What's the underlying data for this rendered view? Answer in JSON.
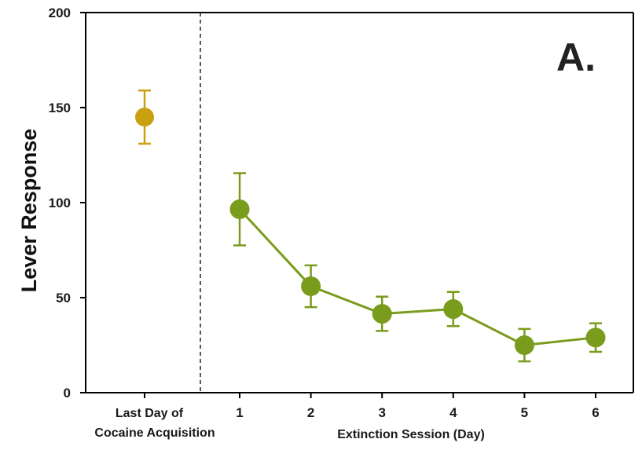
{
  "chart_data": {
    "type": "line",
    "panel_label": "A.",
    "ylabel": "Lever Response",
    "ylim": [
      0,
      200
    ],
    "yticks": [
      "0",
      "50",
      "100",
      "150",
      "200"
    ],
    "acquisition": {
      "label_lines": [
        "Last Day of",
        "Cocaine Acquisition"
      ],
      "mean": 145,
      "error": 14,
      "color": "#c9a010"
    },
    "extinction": {
      "xlabel": "Extinction Session (Day)",
      "categories": [
        "1",
        "2",
        "3",
        "4",
        "5",
        "6"
      ],
      "values": [
        96.5,
        56,
        41.5,
        44,
        25,
        29
      ],
      "errors": [
        19,
        11,
        9,
        9,
        8.5,
        7.5
      ],
      "color": "#7a9c1c"
    },
    "divider": "dashed",
    "grid": false
  }
}
